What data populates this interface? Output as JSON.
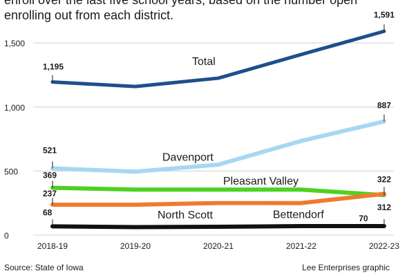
{
  "intro": {
    "line1": "enroll over the last five school years, based on the number open",
    "line2": "enrolling out from each district."
  },
  "chart_data": {
    "type": "line",
    "categories": [
      "2018-19",
      "2019-20",
      "2020-21",
      "2021-22",
      "2022-23"
    ],
    "ylim": [
      0,
      1600
    ],
    "yticks": [
      0,
      500,
      1000,
      1500
    ],
    "ytick_labels": [
      "0",
      "500",
      "1,000",
      "1,500"
    ],
    "grid": true,
    "series": [
      {
        "name": "Total",
        "color": "#1f4e8c",
        "values": [
          1195,
          1160,
          1225,
          1410,
          1591
        ],
        "start_label": "1,195",
        "end_label": "1,591"
      },
      {
        "name": "Davenport",
        "color": "#a7d7f2",
        "values": [
          521,
          495,
          550,
          735,
          887
        ],
        "start_label": "521",
        "end_label": "887"
      },
      {
        "name": "Pleasant Valley",
        "color": "#4fd11f",
        "values": [
          369,
          355,
          355,
          355,
          312
        ],
        "start_label": "369",
        "end_label": "312"
      },
      {
        "name": "Bettendorf",
        "color": "#ef7a30",
        "values": [
          237,
          237,
          250,
          250,
          322
        ],
        "start_label": "237",
        "end_label": "322"
      },
      {
        "name": "North Scott",
        "color": "#111111",
        "values": [
          68,
          62,
          65,
          70,
          70
        ],
        "start_label": "68",
        "end_label": "70"
      }
    ]
  },
  "footer": {
    "source": "Source: State of Iowa",
    "credit": "Lee Enterprises graphic"
  }
}
